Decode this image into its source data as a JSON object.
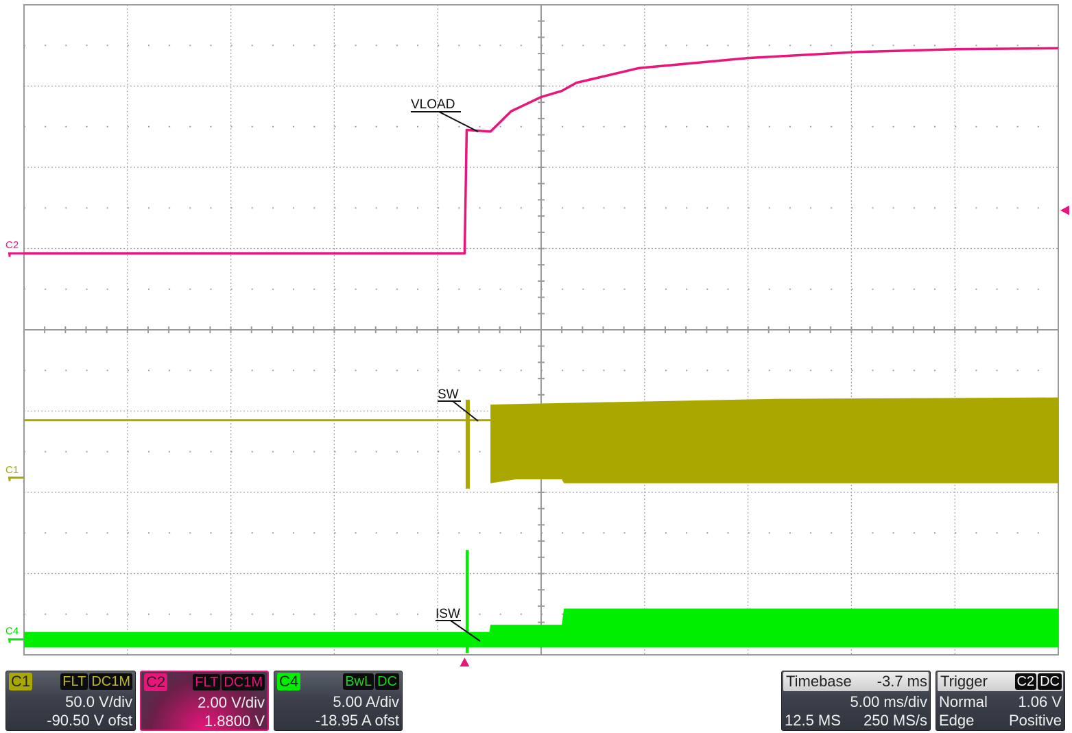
{
  "colors": {
    "c1": "#aaa800",
    "c2": "#e8157a",
    "c4": "#00ee00",
    "grid": "#a0a0a0",
    "axis": "#9a9a9a"
  },
  "chart_data": {
    "type": "line",
    "title": "",
    "xlabel": "",
    "ylabel": "",
    "x_unit": "ms",
    "xlim": [
      -21.3,
      28.7
    ],
    "x_divisions": 10,
    "y_divisions": 8,
    "grid": true,
    "trigger_time": 0,
    "series": [
      {
        "name": "VLOAD",
        "channel": "C2",
        "unit": "V",
        "volts_per_div": 2.0,
        "ground_div_from_top": 3.06,
        "label_div_from_top": 1.2,
        "points": [
          [
            -21.3,
            0
          ],
          [
            0,
            0
          ],
          [
            0.05,
            1.5
          ],
          [
            0.1,
            3.04
          ],
          [
            1.25,
            3.0
          ],
          [
            2.25,
            3.5
          ],
          [
            3.7,
            3.85
          ],
          [
            4.7,
            4.0
          ],
          [
            5.4,
            4.2
          ],
          [
            8.4,
            4.56
          ],
          [
            13.7,
            4.81
          ],
          [
            19.0,
            4.96
          ],
          [
            24.0,
            5.03
          ],
          [
            28.7,
            5.05
          ]
        ]
      },
      {
        "name": "SW",
        "channel": "C1",
        "unit": "V",
        "volts_per_div": 50.0,
        "ground_div_from_top": 5.82,
        "baseline": 35.4,
        "spike": {
          "t": [
            0.05,
            0.25
          ],
          "max": 48,
          "min": -3.4
        },
        "envelope_start": 1.25,
        "upper": [
          [
            1.25,
            45
          ],
          [
            5,
            46
          ],
          [
            15,
            48.5
          ],
          [
            28.7,
            49.4
          ]
        ],
        "lower": [
          [
            1.25,
            -3.4
          ],
          [
            2.5,
            -1
          ],
          [
            4.7,
            -1
          ],
          [
            4.8,
            -3.4
          ],
          [
            28.7,
            -3.4
          ]
        ]
      },
      {
        "name": "ISW",
        "channel": "C4",
        "unit": "A",
        "volts_per_div": 5.0,
        "ground_div_from_top": 7.81,
        "spike": {
          "t": [
            0.05,
            0.2
          ],
          "max": 5.5
        },
        "upper": [
          [
            -21.3,
            0.46
          ],
          [
            1.2,
            0.46
          ],
          [
            1.25,
            0.9
          ],
          [
            4.7,
            0.9
          ],
          [
            4.8,
            1.9
          ],
          [
            28.7,
            1.9
          ]
        ],
        "lower": [
          [
            -21.3,
            -0.5
          ],
          [
            28.7,
            -0.5
          ]
        ]
      }
    ],
    "trigger_level": 1.06
  },
  "channel_markers": {
    "c1": "C1",
    "c2": "C2",
    "c4": "C4"
  },
  "annotations": {
    "vload": "VLOAD",
    "sw": "SW",
    "isw": "ISW"
  },
  "panels": {
    "c1": {
      "tag": "C1",
      "flags": [
        "FLT",
        "DC1M"
      ],
      "scale": "50.0 V/div",
      "offset": "-90.50 V ofst"
    },
    "c2": {
      "tag": "C2",
      "flags": [
        "FLT",
        "DC1M"
      ],
      "scale": "2.00 V/div",
      "offset": "1.8800 V"
    },
    "c4": {
      "tag": "C4",
      "flags": [
        "BwL",
        "DC"
      ],
      "scale": "5.00 A/div",
      "offset": "-18.95 A ofst"
    },
    "timebase": {
      "label": "Timebase",
      "delay": "-3.7 ms",
      "scale": "5.00 ms/div",
      "memory": "12.5 MS",
      "rate": "250 MS/s"
    },
    "trigger": {
      "label": "Trigger",
      "flags": [
        "C2",
        "DC"
      ],
      "mode": "Normal",
      "level": "1.06 V",
      "type": "Edge",
      "slope": "Positive"
    }
  }
}
